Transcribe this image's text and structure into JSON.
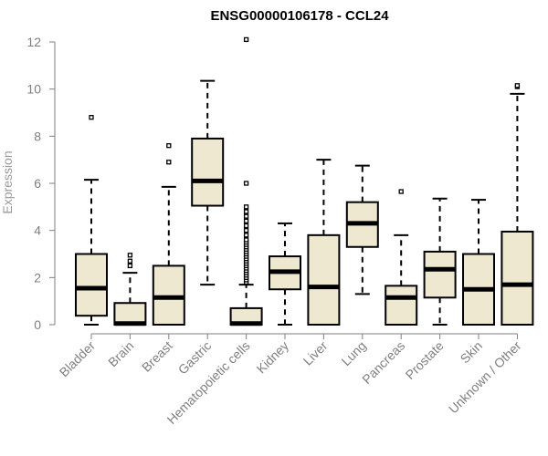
{
  "chart_data": {
    "type": "box",
    "title": "ENSG00000106178 - CCL24",
    "xlabel": "",
    "ylabel": "Expression",
    "ylim": [
      0,
      12
    ],
    "yticks": [
      0,
      2,
      4,
      6,
      8,
      10,
      12
    ],
    "box_fill": "#efe8d0",
    "categories": [
      "Bladder",
      "Brain",
      "Breast",
      "Gastric",
      "Hematopoietic cells",
      "Kidney",
      "Liver",
      "Lung",
      "Pancreas",
      "Prostate",
      "Skin",
      "Unknown / Other"
    ],
    "boxes": [
      {
        "min": 0.0,
        "q1": 0.38,
        "median": 1.55,
        "q3": 3.0,
        "max": 6.15,
        "outliers": [
          8.8
        ]
      },
      {
        "min": 0.0,
        "q1": 0.0,
        "median": 0.05,
        "q3": 0.92,
        "max": 2.2,
        "outliers": [
          2.5,
          2.7,
          2.95
        ]
      },
      {
        "min": 0.0,
        "q1": 0.0,
        "median": 1.15,
        "q3": 2.5,
        "max": 5.85,
        "outliers": [
          6.9,
          7.6
        ]
      },
      {
        "min": 1.7,
        "q1": 5.05,
        "median": 6.1,
        "q3": 7.9,
        "max": 10.35,
        "outliers": []
      },
      {
        "min": 0.0,
        "q1": 0.0,
        "median": 0.05,
        "q3": 0.7,
        "max": 1.7,
        "outliers": [
          1.8,
          1.9,
          2.0,
          2.1,
          2.2,
          2.3,
          2.4,
          2.5,
          2.6,
          2.7,
          2.8,
          2.9,
          3.0,
          3.1,
          3.2,
          3.3,
          3.4,
          3.5,
          3.6,
          3.8,
          4.0,
          4.2,
          4.4,
          4.6,
          4.8,
          5.0,
          6.0,
          12.1
        ]
      },
      {
        "min": 0.0,
        "q1": 1.5,
        "median": 2.25,
        "q3": 2.9,
        "max": 4.3,
        "outliers": []
      },
      {
        "min": 0.0,
        "q1": 0.0,
        "median": 1.6,
        "q3": 3.8,
        "max": 7.0,
        "outliers": []
      },
      {
        "min": 1.3,
        "q1": 3.3,
        "median": 4.3,
        "q3": 5.2,
        "max": 6.75,
        "outliers": []
      },
      {
        "min": 0.0,
        "q1": 0.0,
        "median": 1.15,
        "q3": 1.65,
        "max": 3.8,
        "outliers": [
          5.65
        ]
      },
      {
        "min": 0.0,
        "q1": 1.15,
        "median": 2.35,
        "q3": 3.1,
        "max": 5.35,
        "outliers": []
      },
      {
        "min": 0.0,
        "q1": 0.0,
        "median": 1.5,
        "q3": 3.0,
        "max": 5.3,
        "outliers": []
      },
      {
        "min": 0.0,
        "q1": 0.0,
        "median": 1.7,
        "q3": 3.95,
        "max": 9.8,
        "outliers": [
          10.1,
          10.15
        ]
      }
    ]
  }
}
